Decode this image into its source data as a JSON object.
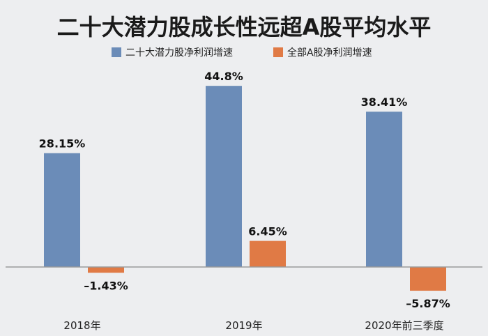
{
  "chart_data": {
    "type": "bar",
    "title": "二十大潜力股成长性远超A股平均水平",
    "categories": [
      "2018年",
      "2019年",
      "2020年前三季度"
    ],
    "series": [
      {
        "name": "二十大潜力股净利润增速",
        "color": "#6b8cb8",
        "values": [
          28.15,
          44.8,
          38.41
        ],
        "labels": [
          "28.15%",
          "44.8%",
          "38.41%"
        ]
      },
      {
        "name": "全部A股净利润增速",
        "color": "#e07a45",
        "values": [
          -1.43,
          6.45,
          -5.87
        ],
        "labels": [
          "–1.43%",
          "6.45%",
          "–5.87%"
        ]
      }
    ],
    "ylim": [
      -8,
      50
    ],
    "xlabel": "",
    "ylabel": "",
    "legend": "top-center",
    "grid": false,
    "axis_color": "#9a9a9a"
  }
}
